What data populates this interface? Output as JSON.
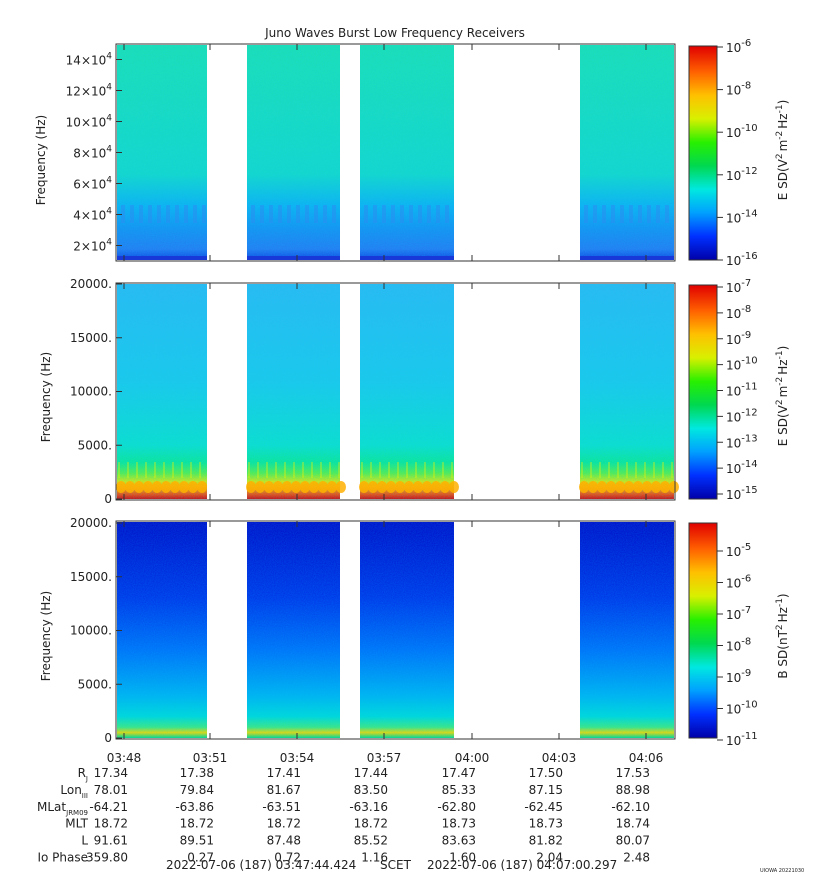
{
  "chart_data": {
    "type": "heatmap",
    "title": "Juno Waves Burst Low Frequency Receivers",
    "x_tick_labels": [
      "03:48",
      "03:51",
      "03:54",
      "03:57",
      "04:00",
      "04:03",
      "04:06"
    ],
    "data_gaps_scet": [
      [
        "03:51",
        "03:52"
      ],
      [
        "03:56",
        "03:56:30"
      ],
      [
        "03:59:50",
        "04:04:30"
      ]
    ],
    "panels": [
      {
        "name": "panel-1",
        "ylabel": "Frequency (Hz)",
        "ylim": [
          10000,
          150000
        ],
        "y_tick_mantissas": [
          "2",
          "4",
          "6",
          "8",
          "10",
          "12",
          "14"
        ],
        "y_tick_exponent": "4",
        "y_tick_values": [
          20000,
          40000,
          60000,
          80000,
          100000,
          120000,
          140000
        ],
        "colorbar_label_base": "E SD(V",
        "colorbar_label_text": [
          "E SD(V",
          "2",
          "m",
          "-2",
          "Hz",
          "-1",
          ")"
        ],
        "colorbar_tick_exponents": [
          "-6",
          "-8",
          "-10",
          "-12",
          "-14",
          "-16"
        ],
        "colorbar_range": [
          "1e-16",
          "1e-6"
        ],
        "dominant_level": "~1e-13"
      },
      {
        "name": "panel-2",
        "ylabel": "Frequency (Hz)",
        "ylim": [
          0,
          20000
        ],
        "y_tick_labels": [
          "0",
          "5000.",
          "10000.",
          "15000.",
          "20000."
        ],
        "colorbar_label_text": [
          "E SD(V",
          "2",
          "m",
          "-2",
          "Hz",
          "-1",
          ")"
        ],
        "colorbar_tick_exponents": [
          "-7",
          "-8",
          "-9",
          "-10",
          "-11",
          "-12",
          "-13",
          "-14",
          "-15"
        ],
        "colorbar_range": [
          "1e-15",
          "1e-7"
        ],
        "low_frequency_enhancement_hz": 1200
      },
      {
        "name": "panel-3",
        "ylabel": "Frequency (Hz)",
        "ylim": [
          0,
          20000
        ],
        "y_tick_labels": [
          "0",
          "5000.",
          "10000.",
          "15000.",
          "20000."
        ],
        "colorbar_label_text": [
          "B SD(nT",
          "2",
          "Hz",
          "-1",
          ")"
        ],
        "colorbar_tick_exponents": [
          "-5",
          "-6",
          "-7",
          "-8",
          "-9",
          "-10",
          "-11"
        ],
        "colorbar_range": [
          "1e-11",
          "1e-4"
        ]
      }
    ]
  },
  "ephemeris": {
    "rows": [
      {
        "label": "R",
        "sub": "J",
        "values": [
          "17.34",
          "17.38",
          "17.41",
          "17.44",
          "17.47",
          "17.50",
          "17.53"
        ]
      },
      {
        "label": "Lon",
        "sub": "III",
        "values": [
          "78.01",
          "79.84",
          "81.67",
          "83.50",
          "85.33",
          "87.15",
          "88.98"
        ]
      },
      {
        "label": "MLat",
        "sub": "JRM09",
        "values": [
          "-64.21",
          "-63.86",
          "-63.51",
          "-63.16",
          "-62.80",
          "-62.45",
          "-62.10"
        ]
      },
      {
        "label": "MLT",
        "sub": "",
        "values": [
          "18.72",
          "18.72",
          "18.72",
          "18.72",
          "18.73",
          "18.73",
          "18.74"
        ]
      },
      {
        "label": "L",
        "sub": "",
        "values": [
          "91.61",
          "89.51",
          "87.48",
          "85.52",
          "83.63",
          "81.82",
          "80.07"
        ]
      },
      {
        "label": "Io Phase",
        "sub": "",
        "values": [
          "359.80",
          "0.27",
          "0.72",
          "1.16",
          "1.60",
          "2.04",
          "2.48"
        ]
      }
    ]
  },
  "footer": {
    "start": "2022-07-06 (187) 03:47:44.424",
    "scet": "SCET",
    "end": "2022-07-06 (187) 04:07:00.297",
    "credit": "UIOWA 20221030"
  },
  "colors": {
    "colormap": [
      "#0000a8",
      "#0030ff",
      "#00a0ff",
      "#00e8e0",
      "#00d850",
      "#28f000",
      "#d8f000",
      "#ffc000",
      "#ff6000",
      "#e00000"
    ]
  }
}
